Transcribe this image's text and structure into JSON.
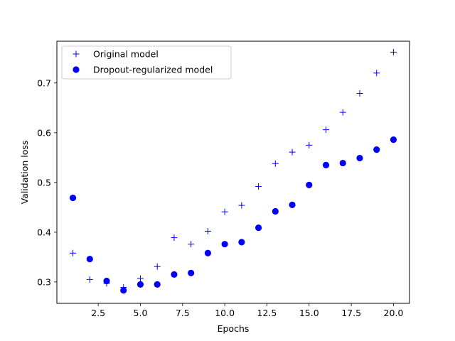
{
  "chart_data": {
    "type": "scatter",
    "title": "",
    "xlabel": "Epochs",
    "ylabel": "Validation loss",
    "xlim": [
      0.05,
      20.95
    ],
    "ylim": [
      0.257,
      0.784
    ],
    "xticks": [
      2.5,
      5.0,
      7.5,
      10.0,
      12.5,
      15.0,
      17.5,
      20.0
    ],
    "xtick_labels": [
      "2.5",
      "5.0",
      "7.5",
      "10.0",
      "12.5",
      "15.0",
      "17.5",
      "20.0"
    ],
    "yticks": [
      0.3,
      0.4,
      0.5,
      0.6,
      0.7
    ],
    "ytick_labels": [
      "0.3",
      "0.4",
      "0.5",
      "0.6",
      "0.7"
    ],
    "grid": false,
    "legend_position": "top-left",
    "series": [
      {
        "name": "Original model",
        "marker": "plus",
        "color": "#0000ff",
        "x": [
          1,
          2,
          3,
          4,
          5,
          6,
          7,
          8,
          9,
          10,
          11,
          12,
          13,
          14,
          15,
          16,
          17,
          18,
          19,
          20
        ],
        "values": [
          0.358,
          0.305,
          0.297,
          0.289,
          0.307,
          0.331,
          0.389,
          0.376,
          0.402,
          0.441,
          0.454,
          0.492,
          0.538,
          0.561,
          0.575,
          0.606,
          0.641,
          0.679,
          0.72,
          0.762
        ]
      },
      {
        "name": "Dropout-regularized model",
        "marker": "circle",
        "color": "#0000ff",
        "x": [
          1,
          2,
          3,
          4,
          5,
          6,
          7,
          8,
          9,
          10,
          11,
          12,
          13,
          14,
          15,
          16,
          17,
          18,
          19,
          20
        ],
        "values": [
          0.469,
          0.346,
          0.302,
          0.283,
          0.295,
          0.295,
          0.315,
          0.318,
          0.358,
          0.376,
          0.38,
          0.409,
          0.442,
          0.455,
          0.495,
          0.535,
          0.539,
          0.549,
          0.566,
          0.586
        ]
      }
    ]
  }
}
